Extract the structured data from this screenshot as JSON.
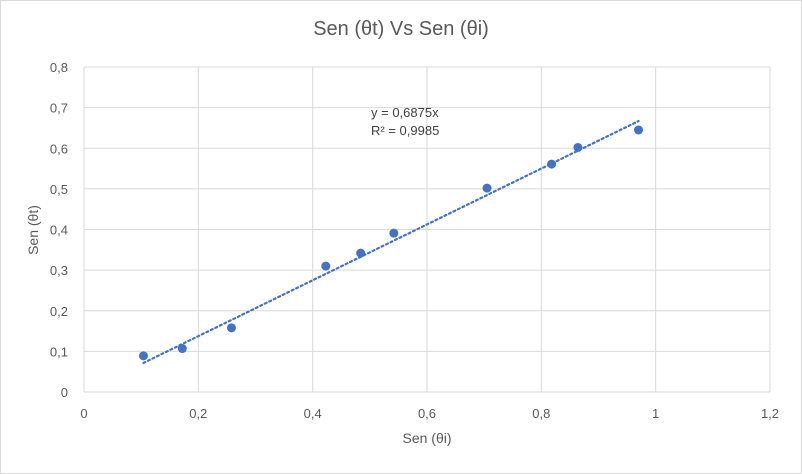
{
  "chart_data": {
    "type": "scatter",
    "title": "Sen (θt) Vs Sen (θi)",
    "xlabel": "Sen (θi)",
    "ylabel": "Sen (θt)",
    "xlim": [
      0,
      1.2
    ],
    "ylim": [
      0,
      0.8
    ],
    "x_ticks": [
      0,
      0.2,
      0.4,
      0.6,
      0.8,
      1,
      1.2
    ],
    "x_tick_labels": [
      "0",
      "0,2",
      "0,4",
      "0,6",
      "0,8",
      "1",
      "1,2"
    ],
    "y_ticks": [
      0,
      0.1,
      0.2,
      0.3,
      0.4,
      0.5,
      0.6,
      0.7,
      0.8
    ],
    "y_tick_labels": [
      "0",
      "0,1",
      "0,2",
      "0,3",
      "0,4",
      "0,5",
      "0,6",
      "0,7",
      "0,8"
    ],
    "grid": true,
    "legend": "none",
    "series": [
      {
        "points": [
          {
            "x": 0.104,
            "y": 0.089
          },
          {
            "x": 0.172,
            "y": 0.107
          },
          {
            "x": 0.258,
            "y": 0.158
          },
          {
            "x": 0.423,
            "y": 0.31
          },
          {
            "x": 0.484,
            "y": 0.342
          },
          {
            "x": 0.542,
            "y": 0.391
          },
          {
            "x": 0.705,
            "y": 0.502
          },
          {
            "x": 0.818,
            "y": 0.561
          },
          {
            "x": 0.864,
            "y": 0.602
          },
          {
            "x": 0.97,
            "y": 0.645
          }
        ],
        "color": "#4472c4"
      }
    ],
    "trendline": {
      "type": "linear",
      "slope": 0.6875,
      "equation": "y = 0,6875x",
      "r_squared": "R² = 0,9985",
      "x_range": [
        0.104,
        0.97
      ],
      "color": "#4472c4"
    }
  }
}
